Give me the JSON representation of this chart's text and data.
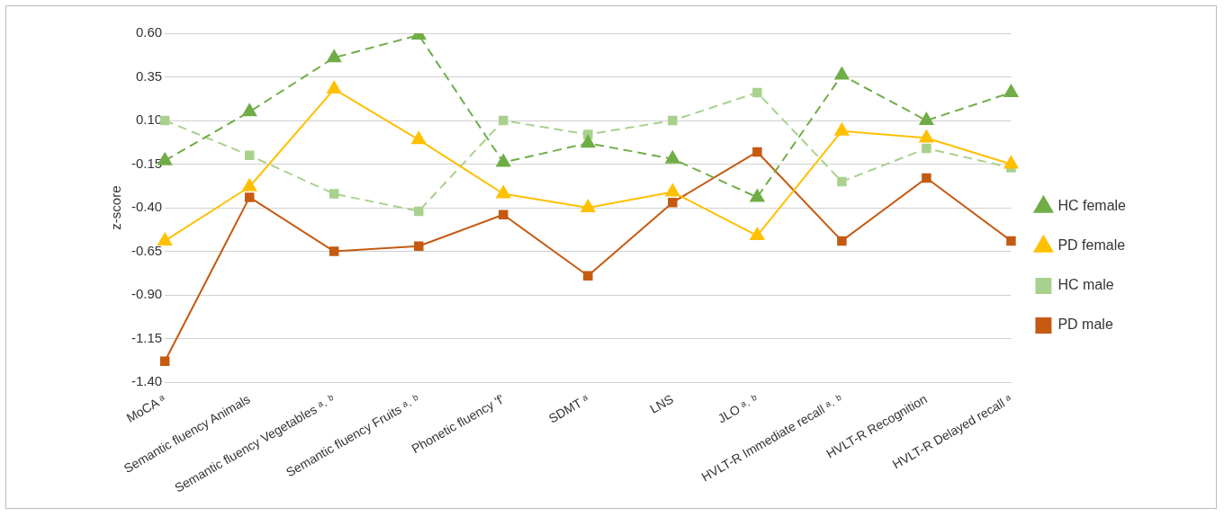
{
  "chart_data": {
    "type": "line",
    "ylabel": "z-score",
    "categories": [
      "MoCA ᵃ",
      "Semantic fluency Animals",
      "Semantic fluency Vegetables ᵃ˒ ᵇ",
      "Semantic fluency Fruits ᵃ˒ ᵇ",
      "Phonetic fluency 'f'",
      "SDMT ᵃ",
      "LNS",
      "JLO ᵃ˒ ᵇ",
      "HVLT-R Immediate recall ᵃ˒ ᵇ",
      "HVLT-R Recognition",
      "HVLT-R Delayed recall ᵃ"
    ],
    "series": [
      {
        "name": "HC female",
        "color": "#70ad47",
        "marker": "triangle",
        "line_style": "dashed",
        "values": [
          -0.13,
          0.15,
          0.46,
          0.59,
          -0.14,
          -0.03,
          -0.12,
          -0.34,
          0.36,
          0.1,
          0.26
        ]
      },
      {
        "name": "HC male",
        "color": "#a9d18e",
        "marker": "square",
        "line_style": "dashed",
        "values": [
          0.1,
          -0.1,
          -0.32,
          -0.42,
          0.1,
          0.02,
          0.1,
          0.26,
          -0.25,
          -0.06,
          -0.17
        ]
      },
      {
        "name": "PD female",
        "color": "#ffc000",
        "marker": "triangle",
        "line_style": "solid",
        "values": [
          -0.59,
          -0.28,
          0.28,
          -0.01,
          -0.32,
          -0.4,
          -0.31,
          -0.56,
          0.04,
          0.0,
          -0.15
        ]
      },
      {
        "name": "PD male",
        "color": "#c55a11",
        "marker": "square",
        "line_style": "solid",
        "values": [
          -1.28,
          -0.34,
          -0.65,
          -0.62,
          -0.44,
          -0.79,
          -0.37,
          -0.08,
          -0.59,
          -0.23,
          -0.59
        ]
      }
    ],
    "ylim": [
      -1.4,
      0.6
    ],
    "yticks": [
      {
        "value": -1.4,
        "label": "-1.40"
      },
      {
        "value": -1.15,
        "label": "-1.15"
      },
      {
        "value": -0.9,
        "label": "-0.90"
      },
      {
        "value": -0.65,
        "label": "-0.65"
      },
      {
        "value": -0.4,
        "label": "-0.40"
      },
      {
        "value": -0.15,
        "label": "-0.15"
      },
      {
        "value": 0.1,
        "label": "0.10"
      },
      {
        "value": 0.35,
        "label": "0.35"
      },
      {
        "value": 0.6,
        "label": "0.60"
      }
    ],
    "grid": "y",
    "legend": "right"
  }
}
